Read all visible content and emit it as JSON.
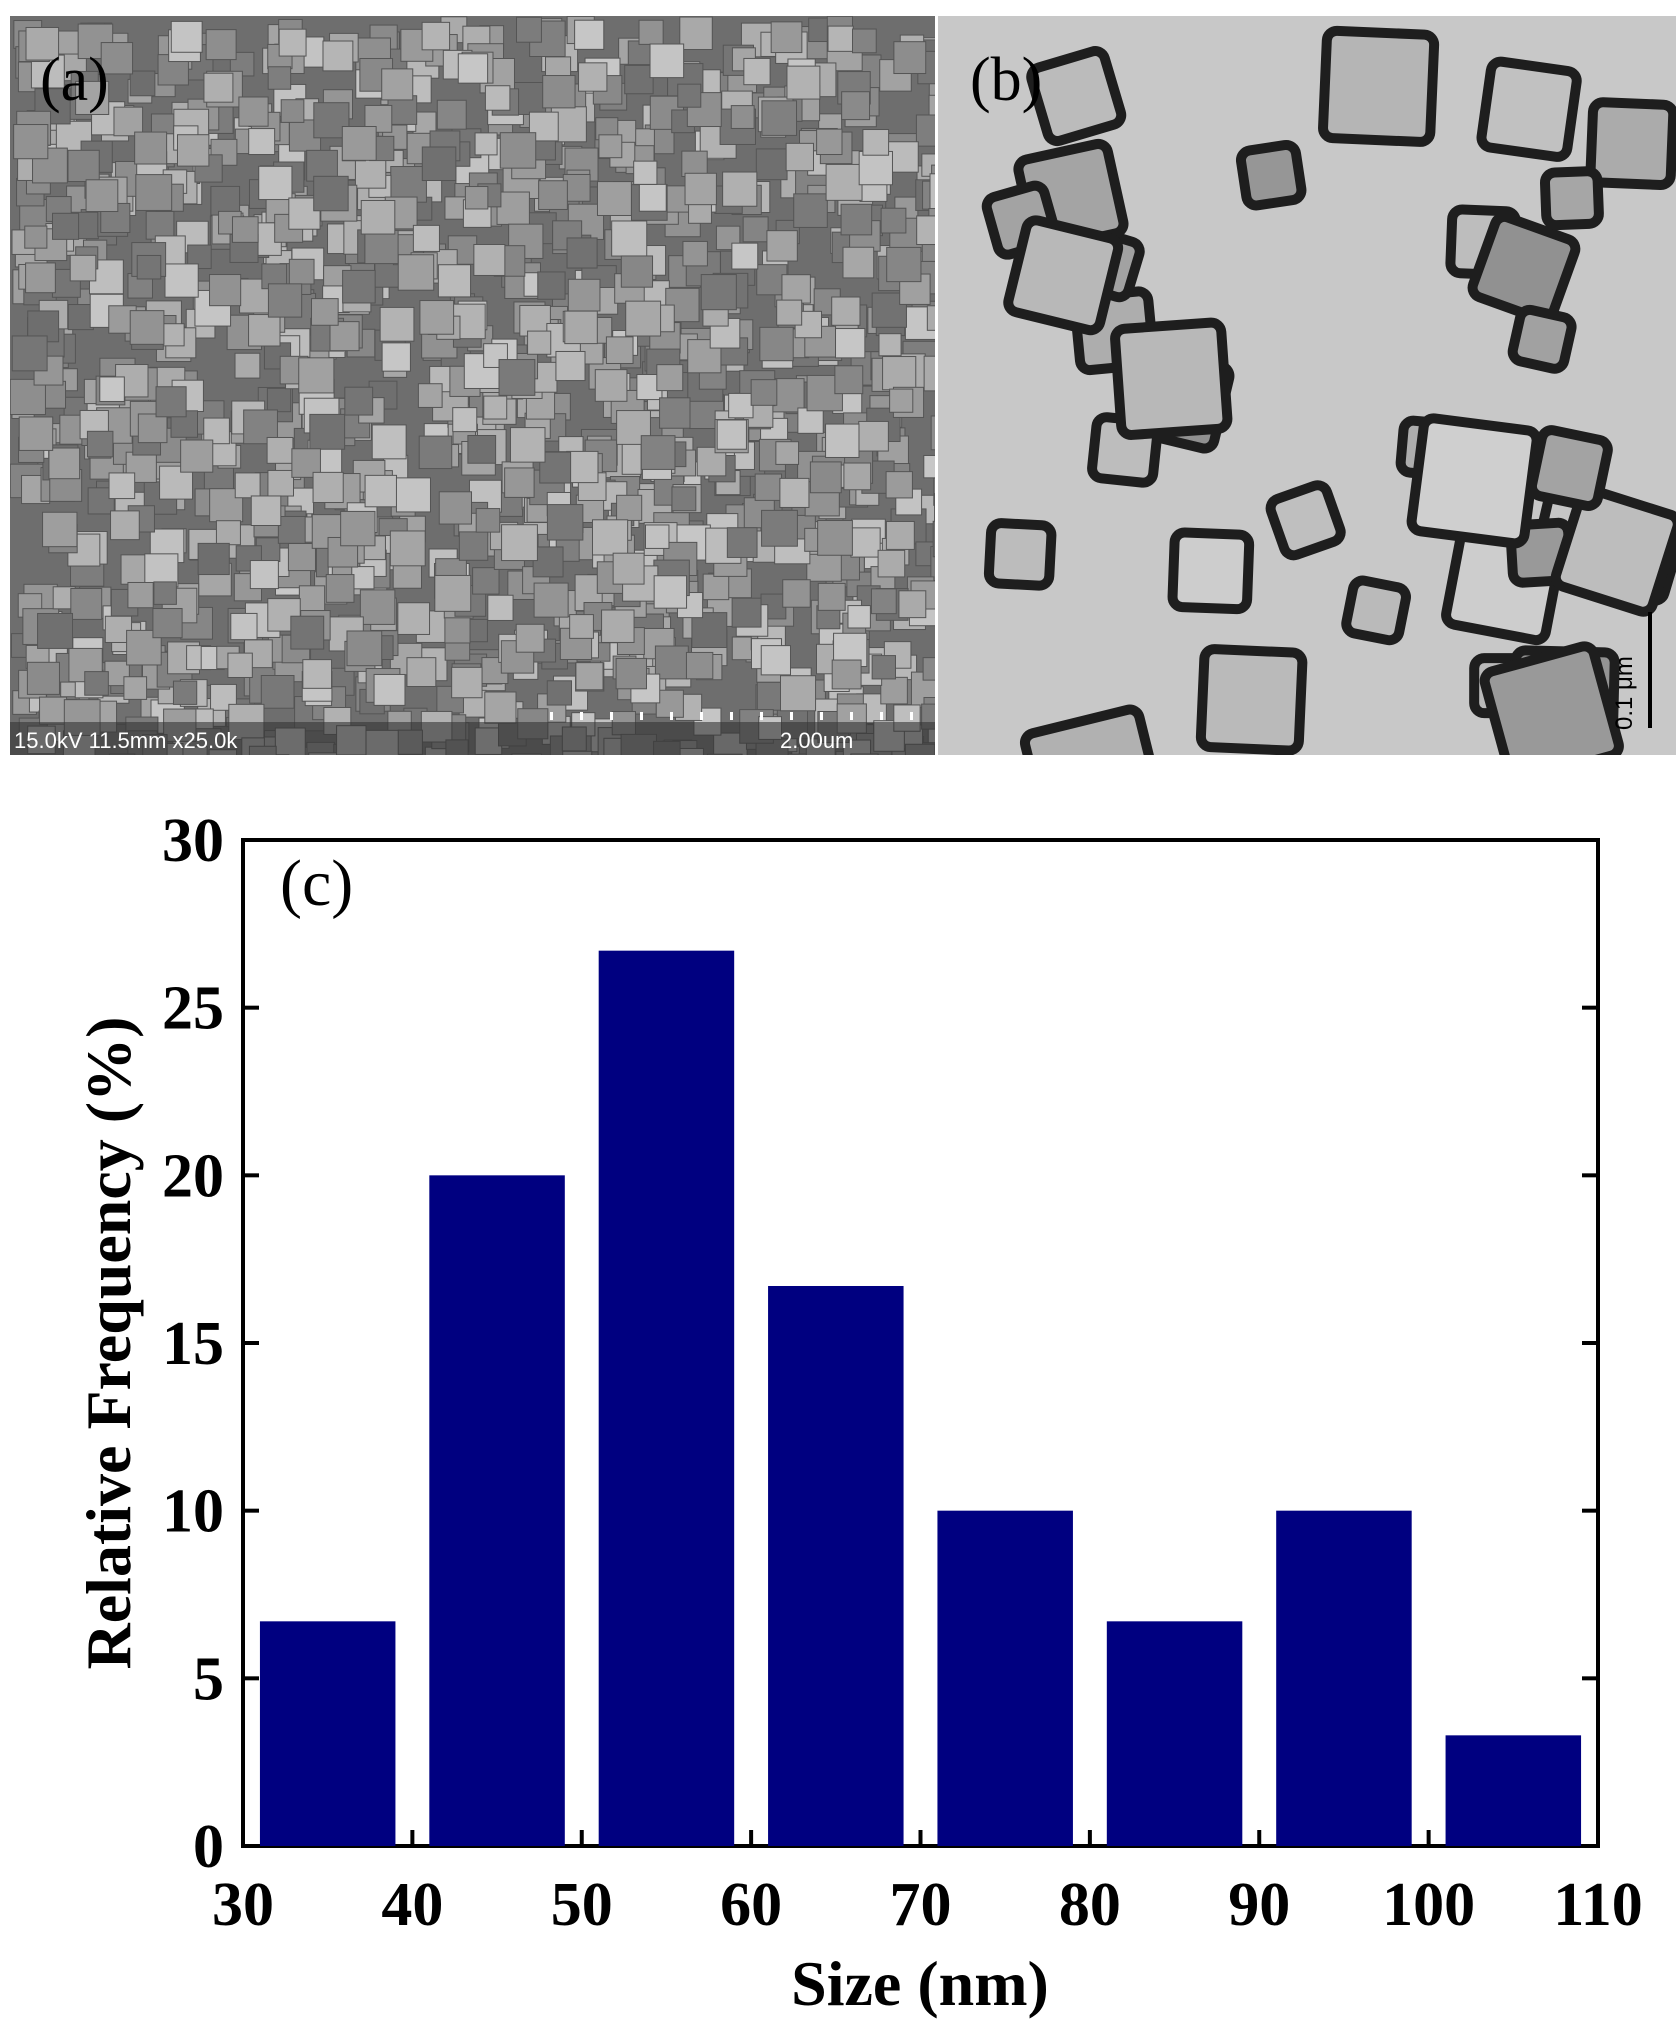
{
  "images": [
    {
      "label": "(a)",
      "annotations": [
        "15.0kV 11.5mm x25.0k",
        "2.00um"
      ]
    },
    {
      "label": "(b)",
      "annotations": [
        "0.1 μm"
      ]
    }
  ],
  "chart_data": {
    "type": "histogram",
    "panel_label": "(c)",
    "x_label": "Size (nm)",
    "y_label": "Relative Frequency (%)",
    "bins": [
      30,
      40,
      50,
      60,
      70,
      80,
      90,
      100,
      110
    ],
    "values": [
      6.7,
      20,
      26.7,
      16.7,
      10,
      6.7,
      10,
      3.3
    ],
    "color": "#000080",
    "xlim": [
      30,
      110
    ],
    "xticks": [
      30,
      40,
      50,
      60,
      70,
      80,
      90,
      100,
      110
    ],
    "ylim": [
      0,
      30
    ],
    "yticks": [
      0,
      5,
      10,
      15,
      20,
      25,
      30
    ]
  }
}
